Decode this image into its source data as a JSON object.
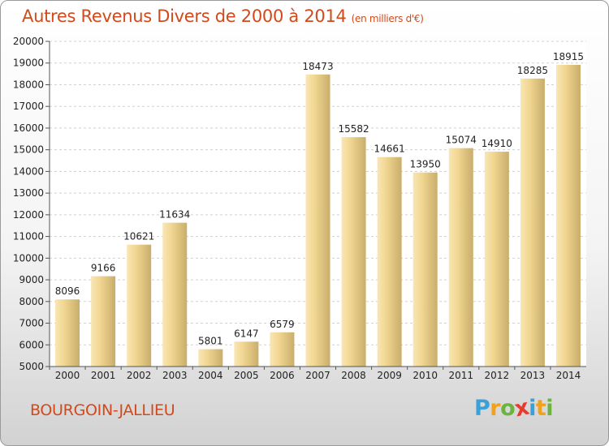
{
  "title": "Autres Revenus Divers de 2000 à 2014",
  "title_unit": "(en milliers d'€)",
  "place": "BOURGOIN-JALLIEU",
  "logo": {
    "letters": [
      "P",
      "r",
      "o",
      "x",
      "i",
      "t",
      "i"
    ],
    "colors": [
      "#3aa0d8",
      "#f0a21b",
      "#6cb33f",
      "#e63c2e",
      "#3aa0d8",
      "#f0a21b",
      "#6cb33f"
    ]
  },
  "colors": {
    "title": "#d04a1b",
    "bar_light": "#f6dda0",
    "bar_dark": "#c8ac68"
  },
  "chart_data": {
    "type": "bar",
    "categories": [
      "2000",
      "2001",
      "2002",
      "2003",
      "2004",
      "2005",
      "2006",
      "2007",
      "2008",
      "2009",
      "2010",
      "2011",
      "2012",
      "2013",
      "2014"
    ],
    "values": [
      8096,
      9166,
      10621,
      11634,
      5801,
      6147,
      6579,
      18473,
      15582,
      14661,
      13950,
      15074,
      14910,
      18285,
      18915
    ],
    "ylim": [
      5000,
      20000
    ],
    "yticks": [
      5000,
      6000,
      7000,
      8000,
      9000,
      10000,
      11000,
      12000,
      13000,
      14000,
      15000,
      16000,
      17000,
      18000,
      19000,
      20000
    ],
    "grid": true,
    "title": "Autres Revenus Divers de 2000 à 2014",
    "xlabel": "",
    "ylabel": ""
  }
}
